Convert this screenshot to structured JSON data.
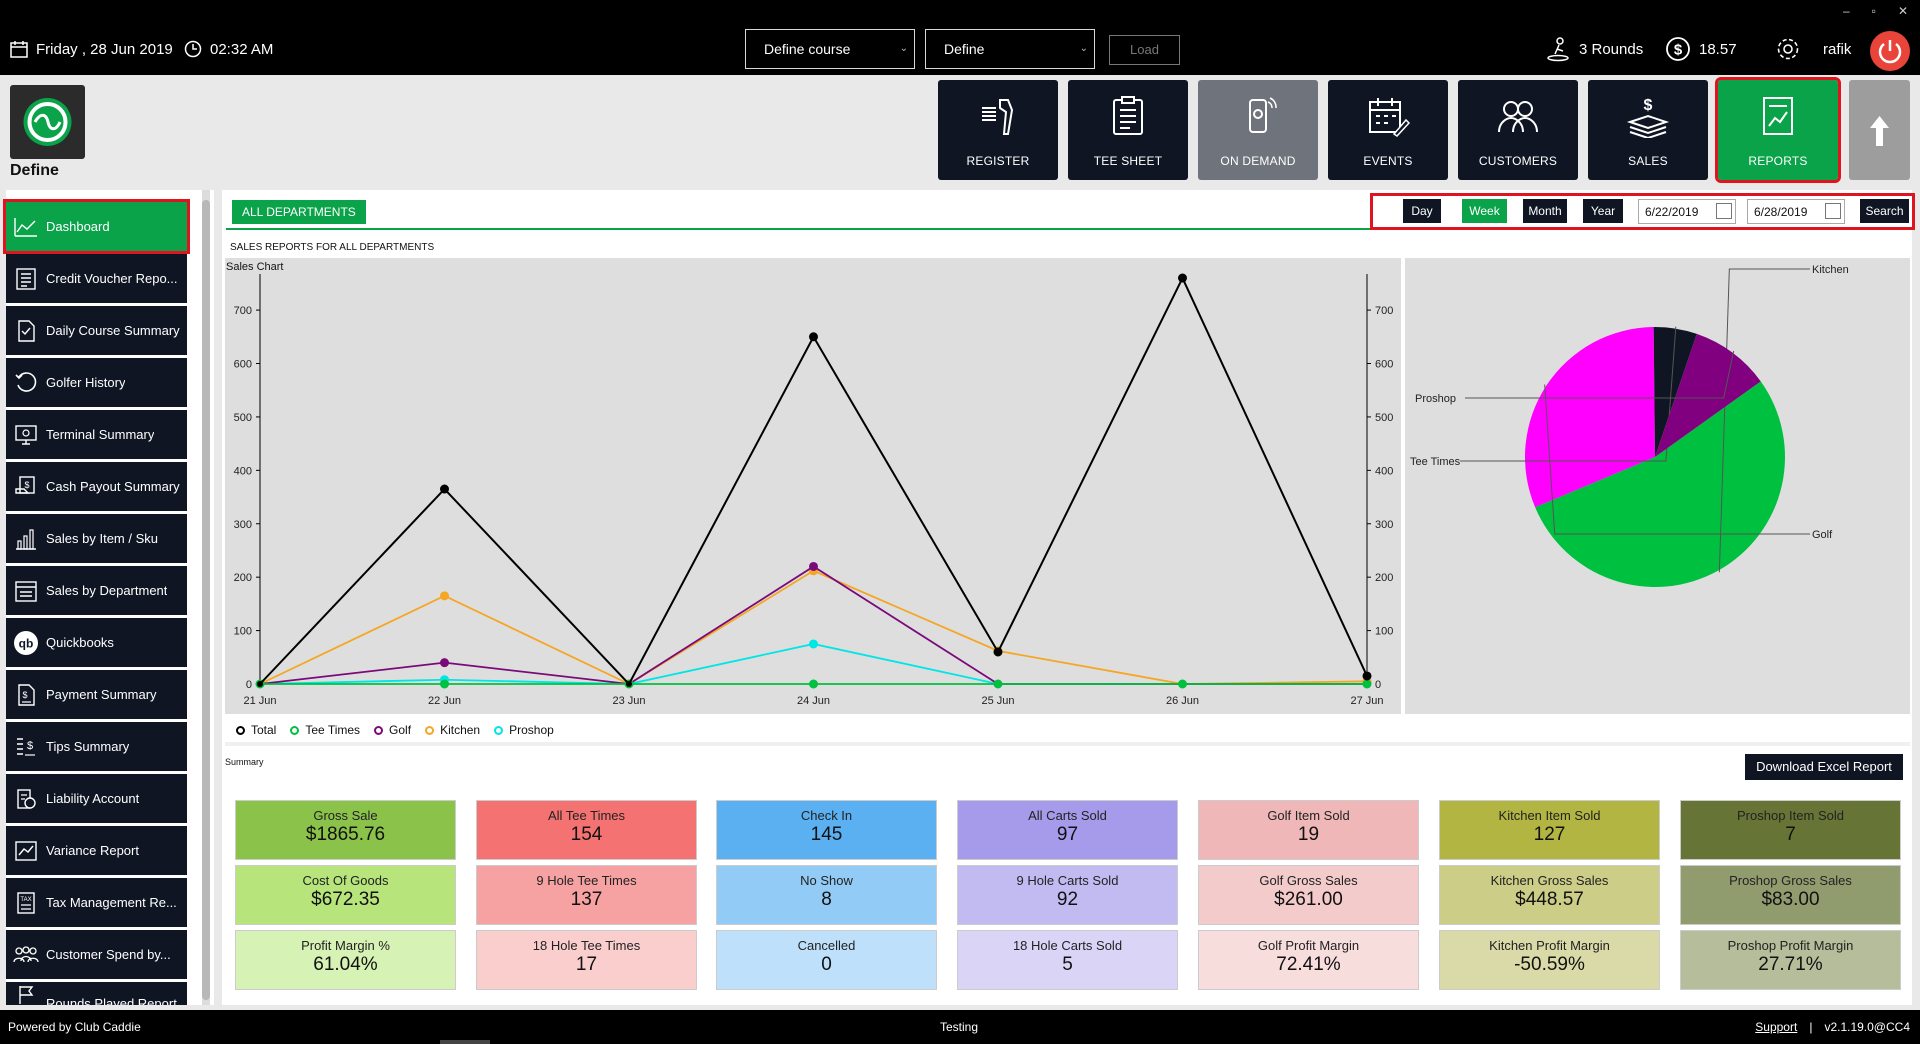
{
  "topbar": {
    "date": "Friday ,  28 Jun 2019",
    "time": "02:32 AM",
    "course_select": "Define course",
    "define_select": "Define",
    "load_label": "Load",
    "rounds": "3 Rounds",
    "balance": "18.57",
    "user": "rafik",
    "window_controls": [
      "–",
      "▫",
      "✕"
    ],
    "icons": [
      "calendar-icon",
      "clock-icon",
      "golfer-icon",
      "dollar-icon",
      "gear-icon",
      "power-icon"
    ]
  },
  "logo": {
    "label": "Define"
  },
  "nav_tiles": [
    {
      "label": "REGISTER",
      "icon": "scanner-icon",
      "state": "normal"
    },
    {
      "label": "TEE SHEET",
      "icon": "clipboard-icon",
      "state": "normal"
    },
    {
      "label": "ON DEMAND",
      "icon": "phone-icon",
      "state": "disabled"
    },
    {
      "label": "EVENTS",
      "icon": "calendar-edit-icon",
      "state": "normal"
    },
    {
      "label": "CUSTOMERS",
      "icon": "users-icon",
      "state": "normal"
    },
    {
      "label": "SALES",
      "icon": "money-stack-icon",
      "state": "normal"
    },
    {
      "label": "REPORTS",
      "icon": "report-icon",
      "state": "active"
    }
  ],
  "sidebar": {
    "items": [
      {
        "label": "Dashboard",
        "icon": "line-chart-icon",
        "active": true
      },
      {
        "label": "Credit Voucher Repo...",
        "icon": "list-icon"
      },
      {
        "label": "Daily Course Summary",
        "icon": "document-icon"
      },
      {
        "label": "Golfer History",
        "icon": "history-icon"
      },
      {
        "label": "Terminal Summary",
        "icon": "terminal-icon"
      },
      {
        "label": "Cash Payout Summary",
        "icon": "cash-icon"
      },
      {
        "label": "Sales by Item / Sku",
        "icon": "bar-chart-icon"
      },
      {
        "label": "Sales by Department",
        "icon": "department-icon"
      },
      {
        "label": "Quickbooks",
        "icon": "quickbooks-icon"
      },
      {
        "label": "Payment Summary",
        "icon": "payment-doc-icon"
      },
      {
        "label": "Tips Summary",
        "icon": "tips-icon"
      },
      {
        "label": "Liability Account",
        "icon": "liability-icon"
      },
      {
        "label": "Variance Report",
        "icon": "variance-icon"
      },
      {
        "label": "Tax Management Re...",
        "icon": "tax-icon"
      },
      {
        "label": "Customer Spend by...",
        "icon": "customer-group-icon"
      },
      {
        "label": "Rounds Played Report",
        "icon": "flag-icon"
      }
    ]
  },
  "filters": {
    "department_tab": "ALL DEPARTMENTS",
    "periods": [
      "Day",
      "Week",
      "Month",
      "Year"
    ],
    "active_period": "Week",
    "from_date": "6/22/2019",
    "to_date": "6/28/2019",
    "search_label": "Search"
  },
  "report_title": "SALES REPORTS FOR ALL DEPARTMENTS",
  "chart_data": [
    {
      "type": "line",
      "title": "Sales Chart",
      "categories": [
        "21 Jun",
        "22 Jun",
        "23 Jun",
        "24 Jun",
        "25 Jun",
        "26 Jun",
        "27 Jun"
      ],
      "ylim": [
        0,
        760
      ],
      "yticks": [
        0,
        100,
        200,
        300,
        400,
        500,
        600,
        700
      ],
      "grid": false,
      "legend": "bottom-left",
      "series": [
        {
          "name": "Total",
          "color": "#000000",
          "values": [
            0,
            365,
            0,
            650,
            60,
            760,
            15
          ]
        },
        {
          "name": "Tee Times",
          "color": "#00c040",
          "values": [
            0,
            0,
            0,
            0,
            0,
            0,
            0
          ]
        },
        {
          "name": "Golf",
          "color": "#7a0a7a",
          "values": [
            0,
            40,
            0,
            220,
            0,
            0,
            0
          ]
        },
        {
          "name": "Kitchen",
          "color": "#f5a623",
          "values": [
            0,
            165,
            0,
            212,
            62,
            0,
            5
          ]
        },
        {
          "name": "Proshop",
          "color": "#00e5e5",
          "values": [
            0,
            8,
            0,
            75,
            0,
            0,
            0
          ]
        }
      ]
    },
    {
      "type": "pie",
      "slices": [
        {
          "name": "Kitchen",
          "value": 448.57,
          "color": "#00c040"
        },
        {
          "name": "Golf",
          "value": 261.0,
          "color": "#ff00ff"
        },
        {
          "name": "Tee Times",
          "value": 45,
          "color": "#0f1523"
        },
        {
          "name": "Proshop",
          "value": 83.0,
          "color": "#800080"
        }
      ]
    }
  ],
  "summary": {
    "label": "Summary",
    "excel_button": "Download Excel Report",
    "columns": [
      {
        "palette": [
          "#8bc34a",
          "#b7e57b",
          "#d6f2b4"
        ],
        "cards": [
          {
            "label": "Gross Sale",
            "value": "$1865.76"
          },
          {
            "label": "Cost Of Goods",
            "value": "$672.35"
          },
          {
            "label": "Profit Margin %",
            "value": "61.04%"
          }
        ]
      },
      {
        "palette": [
          "#f47272",
          "#f7a2a2",
          "#fbcece"
        ],
        "cards": [
          {
            "label": "All Tee Times",
            "value": "154"
          },
          {
            "label": "9 Hole Tee Times",
            "value": "137"
          },
          {
            "label": "18 Hole Tee Times",
            "value": "17"
          }
        ]
      },
      {
        "palette": [
          "#5ab0f0",
          "#92ccf6",
          "#bfe0fa"
        ],
        "cards": [
          {
            "label": "Check In",
            "value": "145"
          },
          {
            "label": "No Show",
            "value": "8"
          },
          {
            "label": "Cancelled",
            "value": "0"
          }
        ]
      },
      {
        "palette": [
          "#a59bea",
          "#c2bbf2",
          "#dad5f7"
        ],
        "cards": [
          {
            "label": "All Carts Sold",
            "value": "97"
          },
          {
            "label": "9 Hole Carts Sold",
            "value": "92"
          },
          {
            "label": "18 Hole Carts Sold",
            "value": "5"
          }
        ]
      },
      {
        "palette": [
          "#efb7b7",
          "#f4cbcb",
          "#f8dddd"
        ],
        "cards": [
          {
            "label": "Golf Item Sold",
            "value": "19"
          },
          {
            "label": "Golf Gross Sales",
            "value": "$261.00"
          },
          {
            "label": "Golf Profit Margin",
            "value": "72.41%"
          }
        ]
      },
      {
        "palette": [
          "#b2b542",
          "#cccd86",
          "#dadaa8"
        ],
        "cards": [
          {
            "label": "Kitchen Item Sold",
            "value": "127"
          },
          {
            "label": "Kitchen Gross Sales",
            "value": "$448.57"
          },
          {
            "label": "Kitchen Profit Margin",
            "value": "-50.59%"
          }
        ]
      },
      {
        "palette": [
          "#667436",
          "#919c6e",
          "#b5bd9b"
        ],
        "cards": [
          {
            "label": "Proshop Item Sold",
            "value": "7"
          },
          {
            "label": "Proshop Gross Sales",
            "value": "$83.00"
          },
          {
            "label": "Proshop Profit Margin",
            "value": "27.71%"
          }
        ]
      }
    ]
  },
  "statusbar": {
    "powered_by": "Powered by Club Caddie",
    "center": "Testing",
    "support": "Support",
    "separator": "|",
    "version": "v2.1.19.0@CC4"
  }
}
